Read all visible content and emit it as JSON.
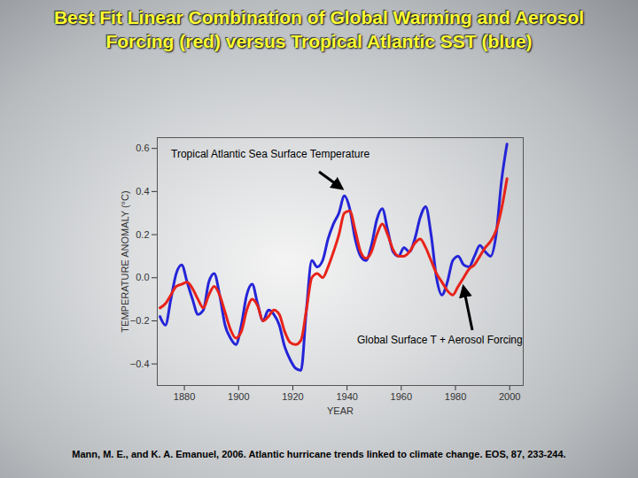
{
  "chart_data": {
    "type": "line",
    "title": "Best Fit Linear Combination of Global Warming and Aerosol Forcing (red) versus Tropical Atlantic SST (blue)",
    "caption": "Mann, M. E., and K. A. Emanuel, 2006. Atlantic hurricane trends linked to climate change. EOS, 87, 233-244.",
    "x_label": "YEAR",
    "y_label": "TEMPERATURE ANOMALY (°C)",
    "x": [
      1871,
      1873,
      1875,
      1877,
      1879,
      1881,
      1883,
      1885,
      1887,
      1889,
      1891,
      1893,
      1895,
      1897,
      1899,
      1901,
      1903,
      1905,
      1907,
      1909,
      1911,
      1913,
      1915,
      1917,
      1919,
      1921,
      1923,
      1925,
      1927,
      1929,
      1931,
      1933,
      1935,
      1937,
      1939,
      1941,
      1943,
      1945,
      1947,
      1949,
      1951,
      1953,
      1955,
      1957,
      1959,
      1961,
      1963,
      1965,
      1967,
      1969,
      1971,
      1973,
      1975,
      1977,
      1979,
      1981,
      1983,
      1985,
      1987,
      1989,
      1991,
      1993,
      1995,
      1997,
      1999
    ],
    "series": [
      {
        "name": "Tropical Atlantic Sea Surface Temperature",
        "color": "#2424d8",
        "values": [
          -0.18,
          -0.22,
          -0.1,
          0.02,
          0.06,
          -0.02,
          -0.1,
          -0.17,
          -0.15,
          -0.02,
          0.02,
          -0.08,
          -0.22,
          -0.28,
          -0.31,
          -0.22,
          -0.08,
          -0.03,
          -0.12,
          -0.2,
          -0.15,
          -0.17,
          -0.22,
          -0.32,
          -0.38,
          -0.42,
          -0.43,
          -0.15,
          0.08,
          0.05,
          0.08,
          0.18,
          0.25,
          0.3,
          0.38,
          0.32,
          0.18,
          0.1,
          0.08,
          0.15,
          0.27,
          0.32,
          0.22,
          0.12,
          0.1,
          0.14,
          0.12,
          0.18,
          0.28,
          0.33,
          0.2,
          0.0,
          -0.08,
          -0.02,
          0.08,
          0.1,
          0.06,
          0.05,
          0.1,
          0.15,
          0.12,
          0.1,
          0.2,
          0.45,
          0.62
        ]
      },
      {
        "name": "Global Surface T + Aerosol Forcing",
        "color": "#e8231a",
        "values": [
          -0.14,
          -0.12,
          -0.08,
          -0.04,
          -0.03,
          -0.02,
          -0.05,
          -0.1,
          -0.14,
          -0.08,
          -0.04,
          -0.08,
          -0.16,
          -0.24,
          -0.28,
          -0.25,
          -0.15,
          -0.1,
          -0.13,
          -0.2,
          -0.18,
          -0.15,
          -0.17,
          -0.25,
          -0.3,
          -0.31,
          -0.29,
          -0.15,
          0.0,
          0.02,
          0.0,
          0.05,
          0.12,
          0.2,
          0.3,
          0.31,
          0.22,
          0.12,
          0.09,
          0.12,
          0.2,
          0.25,
          0.2,
          0.13,
          0.1,
          0.1,
          0.12,
          0.16,
          0.18,
          0.14,
          0.08,
          0.02,
          -0.02,
          -0.06,
          -0.08,
          -0.04,
          0.0,
          0.04,
          0.06,
          0.1,
          0.14,
          0.17,
          0.22,
          0.32,
          0.46
        ]
      }
    ],
    "xlim": [
      1870,
      2005
    ],
    "xticks": [
      1880,
      1900,
      1920,
      1940,
      1960,
      1980,
      2000
    ],
    "ylim": [
      -0.5,
      0.65
    ],
    "yticks": [
      -0.4,
      -0.2,
      0,
      0.2,
      0.4,
      0.6
    ],
    "grid": false
  }
}
